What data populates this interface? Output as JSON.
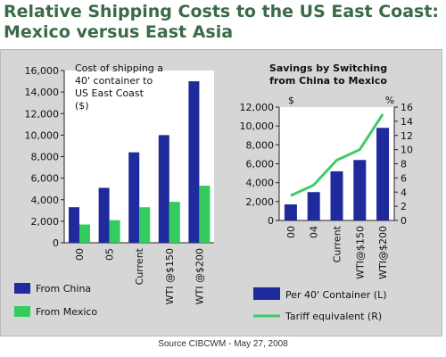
{
  "header": {
    "title_line1": "Relative Shipping Costs to the US East Coast:",
    "title_line2": "Mexico versus East Asia"
  },
  "source": "Source CIBCWM - May 27, 2008",
  "colors": {
    "china": "#1f2a9c",
    "mexico": "#35cc5f",
    "bars": "#1f2a9c",
    "tariff_line": "#3fcc68",
    "title": "#3a6b48",
    "panel": "#d6d6d6"
  },
  "chart_data": [
    {
      "type": "bar",
      "annotation": "Cost of shipping a 40' container to US East Coast ($)",
      "categories": [
        "00",
        "05",
        "Current",
        "WTI @$150",
        "WTI @$200"
      ],
      "series": [
        {
          "name": "From China",
          "values": [
            3300,
            5100,
            8400,
            10000,
            15000
          ]
        },
        {
          "name": "From Mexico",
          "values": [
            1700,
            2100,
            3300,
            3800,
            5300
          ]
        }
      ],
      "yticks": [
        "0",
        "2,000",
        "4,000",
        "6,000",
        "8,000",
        "10,000",
        "12,000",
        "14,000",
        "16,000"
      ],
      "ylim": [
        0,
        16000
      ],
      "legend_position": "bottom-left",
      "grid": false
    },
    {
      "type": "bar",
      "title": "Savings by Switching from China to Mexico",
      "categories": [
        "00",
        "04",
        "Current",
        "WTI@$150",
        "WTI@$200"
      ],
      "series": [
        {
          "name": "Per 40' Container (L)",
          "type": "bar",
          "axis": "left",
          "values": [
            1700,
            3000,
            5200,
            6400,
            9800
          ]
        },
        {
          "name": "Tariff equivalent (R)",
          "type": "line",
          "axis": "right",
          "values": [
            3.5,
            5,
            8.5,
            10,
            15
          ]
        }
      ],
      "ylabel_left": "$",
      "ylabel_right": "%",
      "yticks_left": [
        "0",
        "2,000",
        "4,000",
        "6,000",
        "8,000",
        "10,000",
        "12,000"
      ],
      "yticks_right": [
        "0",
        "2",
        "4",
        "6",
        "8",
        "10",
        "12",
        "14",
        "16"
      ],
      "ylim_left": [
        0,
        12000
      ],
      "ylim_right": [
        0,
        16
      ],
      "legend_position": "bottom",
      "grid": false
    }
  ]
}
